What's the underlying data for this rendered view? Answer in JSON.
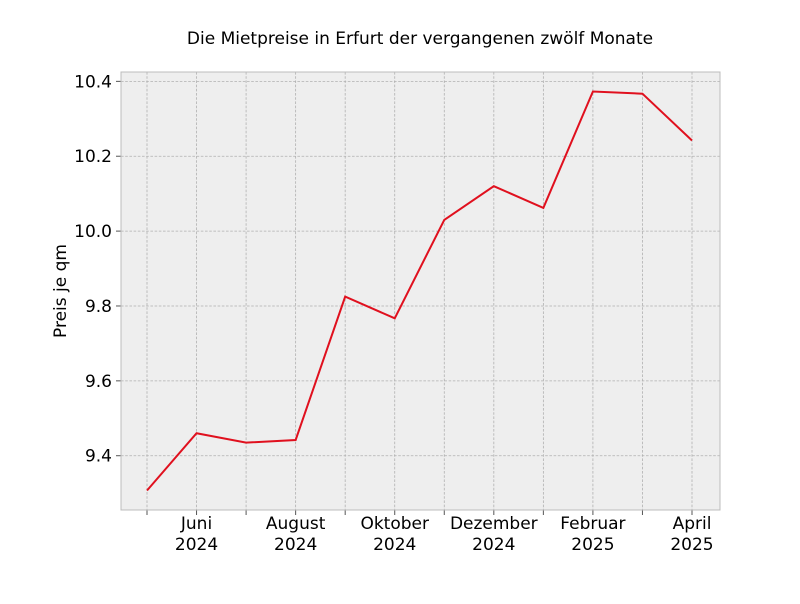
{
  "chart_data": {
    "type": "line",
    "title": "Die Mietpreise in Erfurt der vergangenen zwölf Monate",
    "xlabel": "",
    "ylabel": "Preis je qm",
    "x": [
      "2024-05",
      "2024-06",
      "2024-07",
      "2024-08",
      "2024-09",
      "2024-10",
      "2024-11",
      "2024-12",
      "2025-01",
      "2025-02",
      "2025-03",
      "2025-04"
    ],
    "series": [
      {
        "values": [
          9.307,
          9.46,
          9.435,
          9.442,
          9.825,
          9.767,
          10.03,
          10.12,
          10.062,
          10.373,
          10.367,
          10.242
        ]
      }
    ],
    "ylim": [
      9.255,
      10.425
    ],
    "y_ticks": [
      "9.4",
      "9.6",
      "9.8",
      "10.0",
      "10.2",
      "10.4"
    ],
    "x_tick_labels": [
      {
        "month": "Juni",
        "year": "2024"
      },
      {
        "month": "August",
        "year": "2024"
      },
      {
        "month": "Oktober",
        "year": "2024"
      },
      {
        "month": "Dezember",
        "year": "2024"
      },
      {
        "month": "Februar",
        "year": "2025"
      },
      {
        "month": "April",
        "year": "2025"
      }
    ],
    "grid": true,
    "colors": {
      "line": "#e0101e",
      "plot_background": "#eeeeee",
      "grid": "#b0b0b0",
      "frame": "#bcbcbc"
    }
  }
}
